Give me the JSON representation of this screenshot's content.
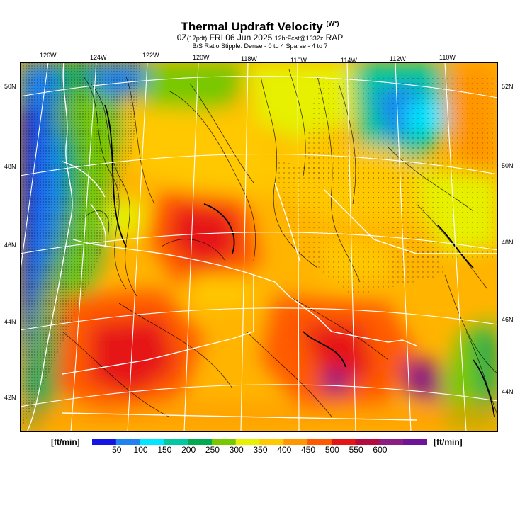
{
  "title": {
    "main": "Thermal Updraft Velocity",
    "superscript": "(W*)",
    "line2_a": "0Z",
    "line2_b": "(17pdt)",
    "line2_c": " FRI 06 Jun 2025 ",
    "line2_d": "12hrFcst@1332z",
    "line2_e": " RAP",
    "line3": "B/S Ratio Stipple:  Dense - 0 to 4  Sparse - 4 to 7"
  },
  "top_lon_labels": [
    "126W",
    "124W",
    "122W",
    "120W",
    "118W",
    "116W",
    "114W",
    "112W",
    "110W"
  ],
  "left_lat_labels": [
    "50N",
    "48N",
    "46N",
    "44N",
    "42N"
  ],
  "right_lat_labels": [
    "52N",
    "50N",
    "48N",
    "46N",
    "44N"
  ],
  "legend": {
    "units_left": "[ft/min]",
    "units_right": "[ft/min]",
    "ticks": [
      "50",
      "100",
      "150",
      "200",
      "250",
      "300",
      "350",
      "400",
      "450",
      "500",
      "550",
      "600"
    ],
    "colors": [
      "#1414e6",
      "#1e82f0",
      "#00e6ff",
      "#00c8a0",
      "#00aa50",
      "#78c800",
      "#e6f000",
      "#ffc800",
      "#ff9600",
      "#ff5a00",
      "#e61414",
      "#b40a3c",
      "#8c1e82",
      "#6e1496"
    ]
  },
  "colors": {
    "coastline": "#ffffff",
    "graticule": "#ffffff",
    "contour": "#000000"
  }
}
